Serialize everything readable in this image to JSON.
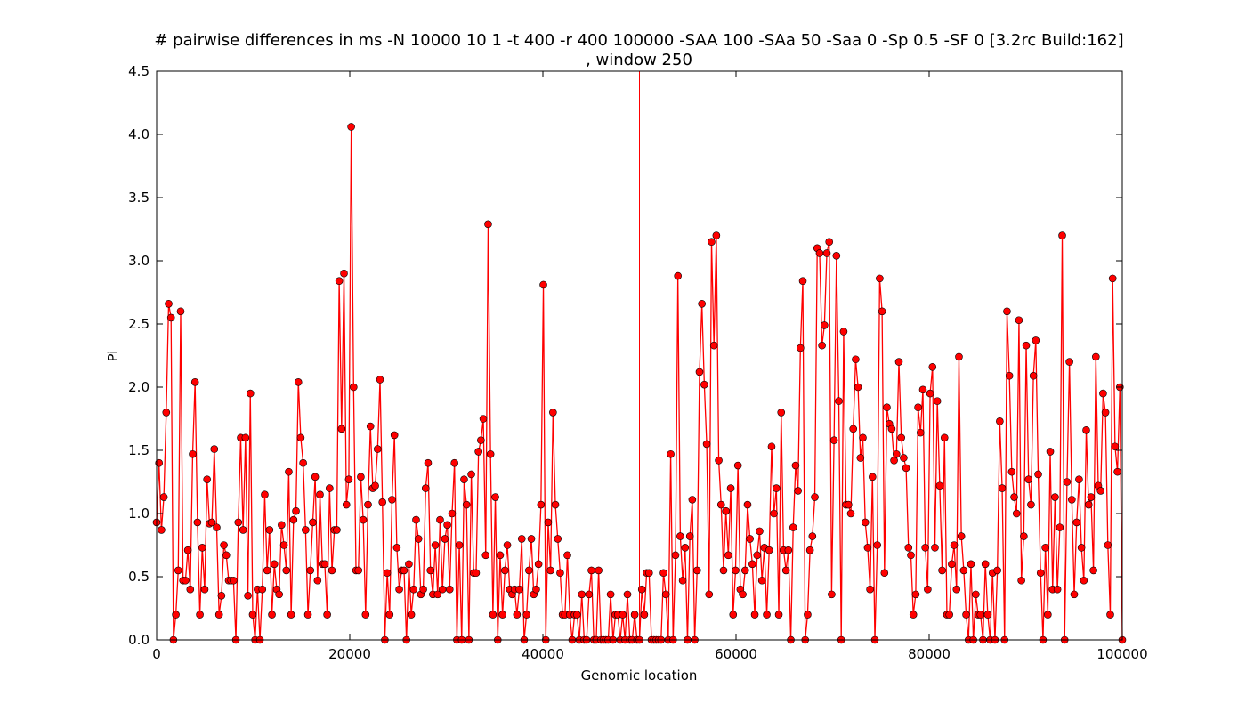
{
  "chart_data": {
    "type": "line",
    "title": "# pairwise differences in ms -N 10000 10 1 -t 400 -r 400 100000 -SAA 100 -SAa 50 -Saa 0 -Sp 0.5 -SF 0  [3.2rc Build:162]",
    "subtitle": ", window 250",
    "xlabel": "Genomic location",
    "ylabel": "Pi",
    "xlim": [
      0,
      100000
    ],
    "ylim": [
      0,
      4.5
    ],
    "x_ticks": [
      0,
      20000,
      40000,
      60000,
      80000,
      100000
    ],
    "y_ticks": [
      0.0,
      0.5,
      1.0,
      1.5,
      2.0,
      2.5,
      3.0,
      3.5,
      4.0,
      4.5
    ],
    "x_tick_labels": [
      "0",
      "20000",
      "40000",
      "60000",
      "80000",
      "100000"
    ],
    "y_tick_labels": [
      "0.0",
      "0.5",
      "1.0",
      "1.5",
      "2.0",
      "2.5",
      "3.0",
      "3.5",
      "4.0",
      "4.5"
    ],
    "vline_x": 50000,
    "grid": false,
    "series": [
      {
        "color": "#ff0000",
        "marker": "circle",
        "values": [
          0.93,
          1.4,
          0.87,
          1.13,
          1.8,
          2.66,
          2.55,
          0.0,
          0.2,
          0.55,
          2.6,
          0.47,
          0.47,
          0.71,
          0.4,
          1.47,
          2.04,
          0.93,
          0.2,
          0.73,
          0.4,
          1.27,
          0.92,
          0.93,
          1.51,
          0.89,
          0.2,
          0.35,
          0.75,
          0.67,
          0.47,
          0.47,
          0.47,
          0.0,
          0.93,
          1.6,
          0.87,
          1.6,
          0.35,
          1.95,
          0.2,
          0.0,
          0.4,
          0.0,
          0.4,
          1.15,
          0.55,
          0.87,
          0.2,
          0.6,
          0.4,
          0.36,
          0.91,
          0.75,
          0.55,
          1.33,
          0.2,
          0.95,
          1.02,
          2.04,
          1.6,
          1.4,
          0.87,
          0.2,
          0.55,
          0.93,
          1.29,
          0.47,
          1.15,
          0.6,
          0.6,
          0.2,
          1.2,
          0.55,
          0.87,
          0.87,
          2.84,
          1.67,
          2.9,
          1.07,
          1.27,
          4.06,
          2.0,
          0.55,
          0.55,
          1.29,
          0.95,
          0.2,
          1.07,
          1.69,
          1.2,
          1.22,
          1.51,
          2.06,
          1.09,
          0.0,
          0.53,
          0.2,
          1.11,
          1.62,
          0.73,
          0.4,
          0.55,
          0.55,
          0.0,
          0.6,
          0.2,
          0.4,
          0.95,
          0.8,
          0.36,
          0.4,
          1.2,
          1.4,
          0.55,
          0.36,
          0.75,
          0.36,
          0.95,
          0.4,
          0.8,
          0.91,
          0.4,
          1.0,
          1.4,
          0.0,
          0.75,
          0.0,
          1.27,
          1.07,
          0.0,
          1.31,
          0.53,
          0.53,
          1.49,
          1.58,
          1.75,
          0.67,
          3.29,
          1.47,
          0.2,
          1.13,
          0.0,
          0.67,
          0.2,
          0.55,
          0.75,
          0.4,
          0.36,
          0.4,
          0.2,
          0.4,
          0.8,
          0.0,
          0.2,
          0.55,
          0.8,
          0.36,
          0.4,
          0.6,
          1.07,
          2.81,
          0.0,
          0.93,
          0.55,
          1.8,
          1.07,
          0.8,
          0.53,
          0.2,
          0.2,
          0.67,
          0.2,
          0.0,
          0.2,
          0.2,
          0.0,
          0.36,
          0.0,
          0.0,
          0.36,
          0.55,
          0.0,
          0.0,
          0.55,
          0.0,
          0.0,
          0.0,
          0.0,
          0.36,
          0.0,
          0.2,
          0.2,
          0.0,
          0.2,
          0.0,
          0.36,
          0.0,
          0.0,
          0.2,
          0.0,
          0.0,
          0.4,
          0.2,
          0.53,
          0.53,
          0.0,
          0.0,
          0.0,
          0.0,
          0.0,
          0.53,
          0.36,
          0.0,
          1.47,
          0.0,
          0.67,
          2.88,
          0.82,
          0.47,
          0.73,
          0.0,
          0.82,
          1.11,
          0.0,
          0.55,
          2.12,
          2.66,
          2.02,
          1.55,
          0.36,
          3.15,
          2.33,
          3.2,
          1.42,
          1.07,
          0.55,
          1.02,
          0.67,
          1.2,
          0.2,
          0.55,
          1.38,
          0.4,
          0.36,
          0.55,
          1.07,
          0.8,
          0.6,
          0.2,
          0.67,
          0.86,
          0.47,
          0.73,
          0.2,
          0.71,
          1.53,
          1.0,
          1.2,
          0.2,
          1.8,
          0.71,
          0.55,
          0.71,
          0.0,
          0.89,
          1.38,
          1.18,
          2.31,
          2.84,
          0.0,
          0.2,
          0.71,
          0.82,
          1.13,
          3.1,
          3.06,
          2.33,
          2.49,
          3.06,
          3.15,
          0.36,
          1.58,
          3.04,
          1.89,
          0.0,
          2.44,
          1.07,
          1.07,
          1.0,
          1.67,
          2.22,
          2.0,
          1.44,
          1.6,
          0.93,
          0.73,
          0.4,
          1.29,
          0.0,
          0.75,
          2.86,
          2.6,
          0.53,
          1.84,
          1.71,
          1.67,
          1.42,
          1.47,
          2.2,
          1.6,
          1.44,
          1.36,
          0.73,
          0.67,
          0.2,
          0.36,
          1.84,
          1.64,
          1.98,
          0.73,
          0.4,
          1.95,
          2.16,
          0.73,
          1.89,
          1.22,
          0.55,
          1.6,
          0.2,
          0.2,
          0.6,
          0.75,
          0.4,
          2.24,
          0.82,
          0.55,
          0.2,
          0.0,
          0.6,
          0.0,
          0.36,
          0.2,
          0.2,
          0.0,
          0.6,
          0.2,
          0.0,
          0.53,
          0.0,
          0.55,
          1.73,
          1.2,
          0.0,
          2.6,
          2.09,
          1.33,
          1.13,
          1.0,
          2.53,
          0.47,
          0.82,
          2.33,
          1.27,
          1.07,
          2.09,
          2.37,
          1.31,
          0.53,
          0.0,
          0.73,
          0.2,
          1.49,
          0.4,
          1.13,
          0.4,
          0.89,
          3.2,
          0.0,
          1.25,
          2.2,
          1.11,
          0.36,
          0.93,
          1.27,
          0.73,
          0.47,
          1.66,
          1.07,
          1.13,
          0.55,
          2.24,
          1.22,
          1.18,
          1.95,
          1.8,
          0.75,
          0.2,
          2.86,
          1.53,
          1.33,
          2.0,
          0.0
        ]
      }
    ]
  }
}
